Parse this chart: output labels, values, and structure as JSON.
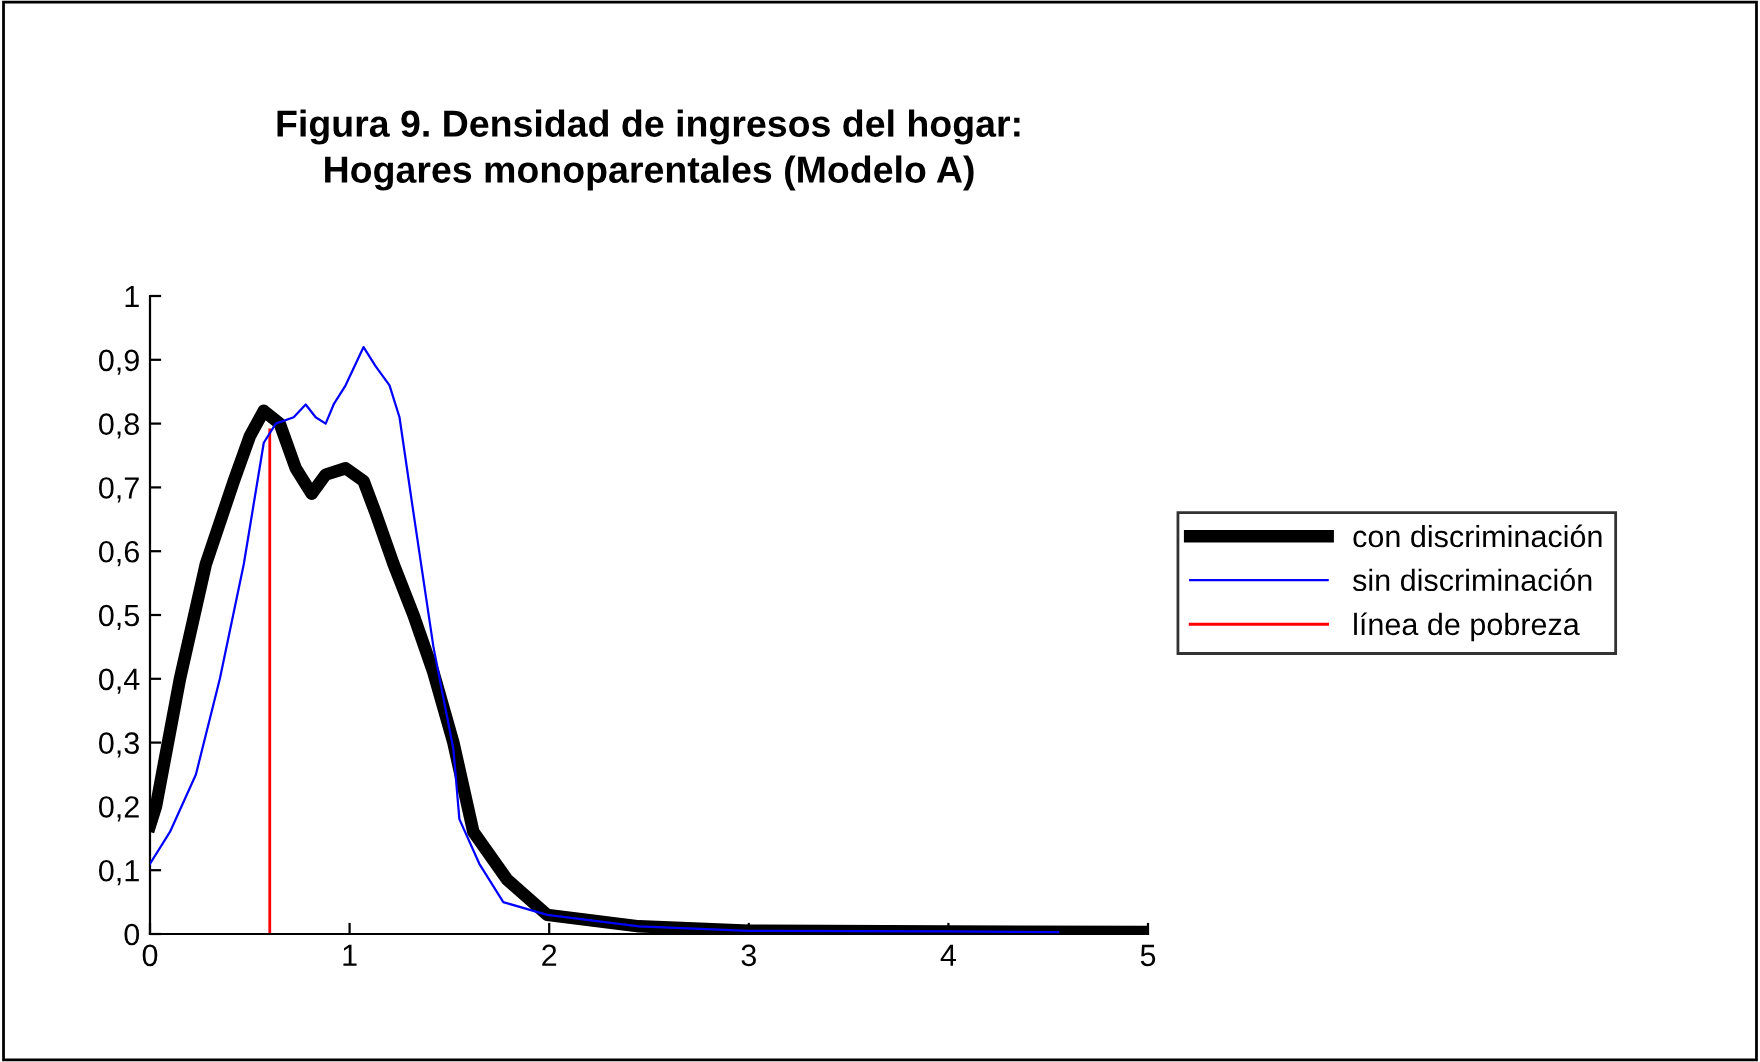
{
  "chart_data": {
    "type": "line",
    "title": "Figura 9. Densidad de ingresos del hogar:\nHogares monoparentales (Modelo A)",
    "xlim": [
      0,
      5
    ],
    "xticks": [
      0,
      1,
      2,
      3,
      4,
      5
    ],
    "ylim": [
      0,
      1
    ],
    "yticks": [
      0,
      {
        "value": 0.1,
        "label": "0,1"
      },
      {
        "value": 0.2,
        "label": "0,2"
      },
      {
        "value": 0.3,
        "label": "0,3"
      },
      {
        "value": 0.4,
        "label": "0,4"
      },
      {
        "value": 0.5,
        "label": "0,5"
      },
      {
        "value": 0.6,
        "label": "0,6"
      },
      {
        "value": 0.7,
        "label": "0,7"
      },
      {
        "value": 0.8,
        "label": "0,8"
      },
      {
        "value": 0.9,
        "label": "0,9"
      },
      1
    ],
    "grid": false,
    "legend": "right",
    "marker": "none",
    "line_style": "solid",
    "series": [
      {
        "name": "con discriminación",
        "color": "#000000",
        "x": [
          0,
          0.03,
          0.15,
          0.28,
          0.42,
          0.5,
          0.57,
          0.65,
          0.73,
          0.81,
          0.88,
          0.98,
          1.07,
          1.13,
          1.22,
          1.32,
          1.42,
          1.52,
          1.62,
          1.79,
          1.99,
          2.45,
          3,
          4,
          5
        ],
        "values": [
          0.17,
          0.2,
          0.4,
          0.58,
          0.71,
          0.78,
          0.82,
          0.8,
          0.73,
          0.69,
          0.72,
          0.73,
          0.71,
          0.66,
          0.58,
          0.5,
          0.41,
          0.3,
          0.16,
          0.085,
          0.03,
          0.012,
          0.005,
          0.004,
          0.003
        ]
      },
      {
        "name": "sin discriminación",
        "color": "#0000ff",
        "x": [
          0,
          0.1,
          0.23,
          0.35,
          0.47,
          0.57,
          0.63,
          0.72,
          0.78,
          0.83,
          0.88,
          0.92,
          0.98,
          1.07,
          1.13,
          1.2,
          1.25,
          1.32,
          1.42,
          1.52,
          1.55,
          1.65,
          1.77,
          1.99,
          2.45,
          3,
          4,
          4.55
        ],
        "values": [
          0.11,
          0.16,
          0.25,
          0.4,
          0.58,
          0.77,
          0.8,
          0.81,
          0.83,
          0.81,
          0.8,
          0.83,
          0.86,
          0.92,
          0.89,
          0.86,
          0.81,
          0.66,
          0.45,
          0.29,
          0.18,
          0.11,
          0.05,
          0.03,
          0.012,
          0.005,
          0.004,
          0.003
        ]
      },
      {
        "name": "línea de pobreza",
        "color": "#ff0000",
        "x": [
          0.6,
          0.6
        ],
        "values": [
          0,
          0.79
        ]
      }
    ]
  }
}
